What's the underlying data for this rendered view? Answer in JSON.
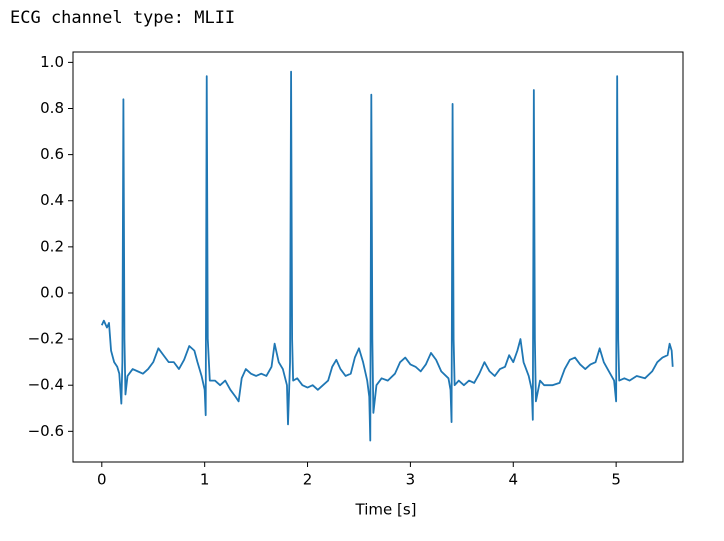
{
  "output_text": "ECG channel type: MLII",
  "chart_data": {
    "type": "line",
    "xlabel": "Time [s]",
    "x": [
      0.0,
      0.02,
      0.05,
      0.07,
      0.09,
      0.12,
      0.15,
      0.17,
      0.19,
      0.2,
      0.21,
      0.22,
      0.23,
      0.25,
      0.3,
      0.35,
      0.4,
      0.45,
      0.5,
      0.55,
      0.6,
      0.65,
      0.7,
      0.75,
      0.8,
      0.85,
      0.9,
      0.93,
      0.97,
      1.0,
      1.01,
      1.02,
      1.03,
      1.05,
      1.1,
      1.15,
      1.2,
      1.25,
      1.3,
      1.33,
      1.36,
      1.4,
      1.45,
      1.5,
      1.55,
      1.6,
      1.65,
      1.68,
      1.72,
      1.76,
      1.8,
      1.81,
      1.83,
      1.84,
      1.85,
      1.86,
      1.9,
      1.95,
      2.0,
      2.05,
      2.1,
      2.15,
      2.2,
      2.24,
      2.28,
      2.32,
      2.37,
      2.42,
      2.46,
      2.5,
      2.54,
      2.58,
      2.6,
      2.61,
      2.62,
      2.63,
      2.64,
      2.67,
      2.72,
      2.78,
      2.85,
      2.9,
      2.95,
      3.0,
      3.05,
      3.1,
      3.15,
      3.2,
      3.25,
      3.3,
      3.37,
      3.39,
      3.4,
      3.41,
      3.42,
      3.43,
      3.47,
      3.52,
      3.57,
      3.62,
      3.67,
      3.72,
      3.77,
      3.82,
      3.87,
      3.92,
      3.96,
      4.0,
      4.04,
      4.07,
      4.1,
      4.15,
      4.18,
      4.19,
      4.2,
      4.21,
      4.22,
      4.26,
      4.3,
      4.38,
      4.45,
      4.5,
      4.55,
      4.6,
      4.65,
      4.7,
      4.75,
      4.8,
      4.84,
      4.88,
      4.93,
      4.98,
      5.0,
      5.01,
      5.02,
      5.03,
      5.08,
      5.13,
      5.2,
      5.28,
      5.35,
      5.4,
      5.45,
      5.5,
      5.52,
      5.54,
      5.55
    ],
    "values": [
      -0.14,
      -0.12,
      -0.15,
      -0.13,
      -0.25,
      -0.3,
      -0.32,
      -0.35,
      -0.48,
      -0.3,
      0.84,
      -0.2,
      -0.44,
      -0.36,
      -0.33,
      -0.34,
      -0.35,
      -0.33,
      -0.3,
      -0.24,
      -0.27,
      -0.3,
      -0.3,
      -0.33,
      -0.29,
      -0.23,
      -0.25,
      -0.3,
      -0.36,
      -0.42,
      -0.53,
      0.94,
      -0.2,
      -0.38,
      -0.38,
      -0.4,
      -0.38,
      -0.42,
      -0.45,
      -0.47,
      -0.37,
      -0.33,
      -0.35,
      -0.36,
      -0.35,
      -0.36,
      -0.32,
      -0.22,
      -0.3,
      -0.33,
      -0.4,
      -0.57,
      -0.3,
      0.96,
      -0.2,
      -0.38,
      -0.37,
      -0.4,
      -0.41,
      -0.4,
      -0.42,
      -0.4,
      -0.38,
      -0.32,
      -0.29,
      -0.33,
      -0.36,
      -0.35,
      -0.28,
      -0.24,
      -0.3,
      -0.38,
      -0.45,
      -0.64,
      0.86,
      -0.2,
      -0.52,
      -0.4,
      -0.37,
      -0.38,
      -0.35,
      -0.3,
      -0.28,
      -0.31,
      -0.32,
      -0.34,
      -0.31,
      -0.26,
      -0.29,
      -0.34,
      -0.37,
      -0.42,
      -0.56,
      0.82,
      -0.2,
      -0.4,
      -0.38,
      -0.4,
      -0.38,
      -0.39,
      -0.35,
      -0.3,
      -0.34,
      -0.36,
      -0.33,
      -0.32,
      -0.27,
      -0.3,
      -0.25,
      -0.2,
      -0.3,
      -0.36,
      -0.42,
      -0.55,
      0.88,
      -0.2,
      -0.47,
      -0.38,
      -0.4,
      -0.4,
      -0.39,
      -0.33,
      -0.29,
      -0.28,
      -0.31,
      -0.33,
      -0.31,
      -0.3,
      -0.24,
      -0.3,
      -0.34,
      -0.38,
      -0.47,
      0.94,
      -0.2,
      -0.38,
      -0.37,
      -0.38,
      -0.36,
      -0.37,
      -0.34,
      -0.3,
      -0.28,
      -0.27,
      -0.22,
      -0.25,
      -0.32
    ],
    "color": "#1f77b4",
    "xlim": [
      -0.28,
      5.65
    ],
    "ylim": [
      -0.733,
      1.045
    ],
    "xticks": [
      0,
      1,
      2,
      3,
      4,
      5
    ],
    "yticks": [
      {
        "value": -0.6,
        "label": "−0.6"
      },
      {
        "value": -0.4,
        "label": "−0.4"
      },
      {
        "value": -0.2,
        "label": "−0.2"
      },
      {
        "value": 0,
        "label": "0.0"
      },
      0.2,
      0.4,
      0.6,
      0.8,
      {
        "value": 1,
        "label": "1.0"
      }
    ],
    "grid": false
  }
}
